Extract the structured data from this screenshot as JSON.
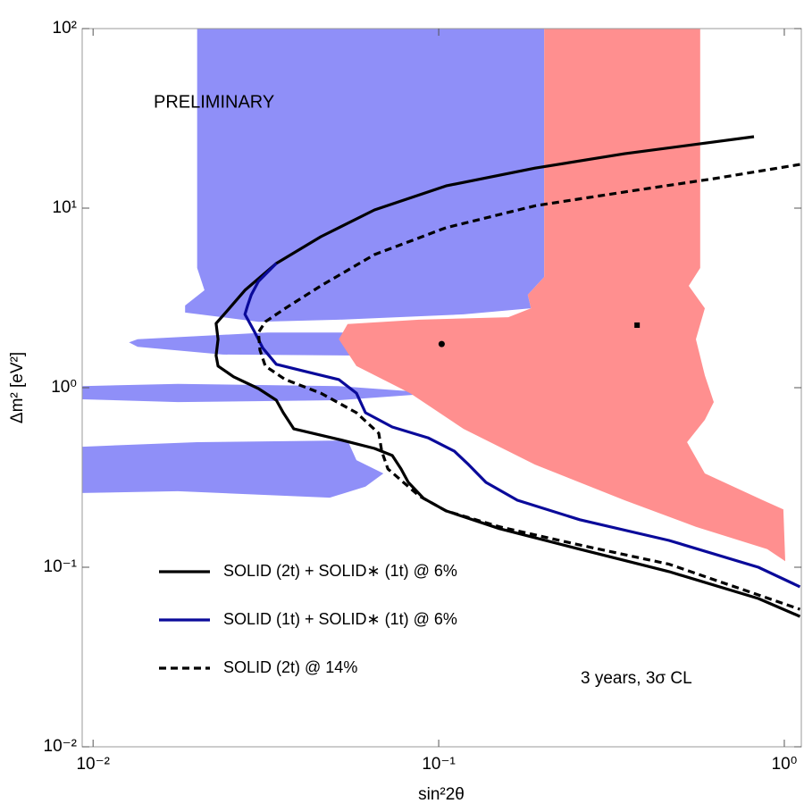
{
  "chart_data": {
    "type": "line",
    "x_label": "sin²2θ",
    "y_label": "Δm² [eV²]",
    "annotations": [
      "PRELIMINARY",
      "3 years, 3σ CL"
    ],
    "xscale": "log",
    "yscale": "log",
    "xlim": [
      0.0093,
      1.12
    ],
    "ylim": [
      0.01,
      100
    ],
    "xticks": [
      {
        "value": 0.01,
        "label": "10⁻²"
      },
      {
        "value": 0.1,
        "label": "10⁻¹"
      },
      {
        "value": 1,
        "label": "10⁰"
      }
    ],
    "yticks": [
      {
        "value": 0.01,
        "label": "10⁻²"
      },
      {
        "value": 0.1,
        "label": "10⁻¹"
      },
      {
        "value": 1,
        "label": "10⁰"
      },
      {
        "value": 10,
        "label": "10¹"
      },
      {
        "value": 100,
        "label": "10²"
      }
    ],
    "legend": "lower left",
    "regions": [
      {
        "color": "#8f8ff8",
        "x": [
          0.02,
          0.202,
          0.202,
          0.181,
          0.185,
          0.118,
          0.0514,
          0.0301,
          0.01846,
          0.01846,
          0.021,
          0.02
        ],
        "y": [
          100,
          100,
          4.14,
          3.29,
          2.77,
          2.56,
          2.39,
          2.33,
          2.62,
          2.87,
          3.49,
          4.64
        ]
      },
      {
        "color": "#8f8ff8",
        "x": [
          0.0127,
          0.01346,
          0.0319,
          0.0778,
          0.133,
          0.143,
          0.125,
          0.0578,
          0.0237,
          0.01346
        ],
        "y": [
          1.79,
          1.86,
          2.03,
          2.03,
          1.9,
          1.77,
          1.62,
          1.51,
          1.53,
          1.69
        ]
      },
      {
        "color": "#8f8ff8",
        "x": [
          0.00925,
          0.0176,
          0.0514,
          0.0988,
          0.0514,
          0.0176,
          0.00925
        ],
        "y": [
          1.02,
          1.05,
          1.02,
          0.933,
          0.852,
          0.832,
          0.862
        ]
      },
      {
        "color": "#8f8ff8",
        "x": [
          0.00925,
          0.02,
          0.0545,
          0.0578,
          0.0692,
          0.0614,
          0.0484,
          0.0176,
          0.00925
        ],
        "y": [
          0.469,
          0.497,
          0.508,
          0.395,
          0.333,
          0.281,
          0.244,
          0.265,
          0.259
        ]
      },
      {
        "color": "#ff8f8f",
        "x": [
          0.202,
          0.571,
          0.571,
          0.529,
          0.589,
          0.555,
          0.589,
          0.625,
          0.589,
          0.523,
          0.589,
          0.867,
          0.994,
          1.006,
          0.893,
          0.555,
          0.345,
          0.19,
          0.118,
          0.0826,
          0.0578,
          0.0514,
          0.0545,
          0.0877,
          0.159,
          0.185,
          0.181,
          0.202
        ],
        "y": [
          100,
          100,
          4.64,
          3.69,
          2.77,
          1.86,
          1.17,
          0.832,
          0.662,
          0.497,
          0.333,
          0.236,
          0.21,
          0.108,
          0.126,
          0.168,
          0.236,
          0.373,
          0.59,
          0.933,
          1.32,
          1.86,
          2.26,
          2.39,
          2.47,
          2.77,
          3.29,
          4.14
        ]
      }
    ],
    "points": [
      {
        "x": 0.102,
        "y": 1.75,
        "marker": "circle",
        "color": "#000000"
      },
      {
        "x": 0.375,
        "y": 2.23,
        "marker": "square",
        "color": "#000000"
      }
    ],
    "series": [
      {
        "name": "SOLID (2t) + SOLID∗ (1t) @ 6%",
        "color": "#000000",
        "linestyle": "solid",
        "x": [
          0.817,
          0.345,
          0.19,
          0.105,
          0.0652,
          0.0456,
          0.0339,
          0.0275,
          0.0248,
          0.0227,
          0.023,
          0.0227,
          0.023,
          0.0255,
          0.0301,
          0.0339,
          0.0355,
          0.0381,
          0.0514,
          0.0652,
          0.0734,
          0.0778,
          0.0817,
          0.0904,
          0.105,
          0.15,
          0.256,
          0.464,
          0.841,
          1.11
        ],
        "values": [
          25.0,
          20.1,
          16.7,
          13.3,
          9.77,
          6.93,
          4.92,
          3.49,
          2.77,
          2.28,
          1.86,
          1.51,
          1.32,
          1.15,
          0.989,
          0.852,
          0.726,
          0.59,
          0.515,
          0.459,
          0.419,
          0.353,
          0.297,
          0.242,
          0.206,
          0.164,
          0.126,
          0.0945,
          0.067,
          0.0532
        ]
      },
      {
        "name": "SOLID (1t) + SOLID∗ (1t) @ 6%",
        "color": "#0a0a9a",
        "linestyle": "solid",
        "x": [
          0.0339,
          0.0301,
          0.0287,
          0.028,
          0.0275,
          0.0292,
          0.031,
          0.0339,
          0.0405,
          0.0514,
          0.0578,
          0.0614,
          0.0734,
          0.0931,
          0.111,
          0.122,
          0.137,
          0.169,
          0.256,
          0.464,
          0.841,
          1.11
        ],
        "values": [
          4.92,
          3.91,
          3.29,
          2.87,
          2.56,
          2.08,
          1.66,
          1.35,
          1.24,
          1.11,
          0.933,
          0.726,
          0.604,
          0.526,
          0.443,
          0.373,
          0.297,
          0.236,
          0.184,
          0.141,
          0.1,
          0.0778
        ]
      },
      {
        "name": "SOLID (2t) @ 14%",
        "color": "#000000",
        "linestyle": "dashed",
        "x": [
          1.11,
          0.625,
          0.345,
          0.19,
          0.105,
          0.0652,
          0.0456,
          0.036,
          0.0315,
          0.0301,
          0.0304,
          0.0315,
          0.036,
          0.0456,
          0.0578,
          0.0671,
          0.0684,
          0.0713,
          0.0877,
          0.105,
          0.15,
          0.256,
          0.464,
          0.841,
          1.11
        ],
        "values": [
          17.5,
          14.6,
          12.3,
          10.3,
          7.78,
          5.51,
          3.69,
          2.77,
          2.33,
          2.03,
          1.62,
          1.32,
          1.11,
          0.933,
          0.726,
          0.557,
          0.443,
          0.353,
          0.25,
          0.206,
          0.168,
          0.133,
          0.104,
          0.0701,
          0.0583
        ]
      }
    ]
  }
}
